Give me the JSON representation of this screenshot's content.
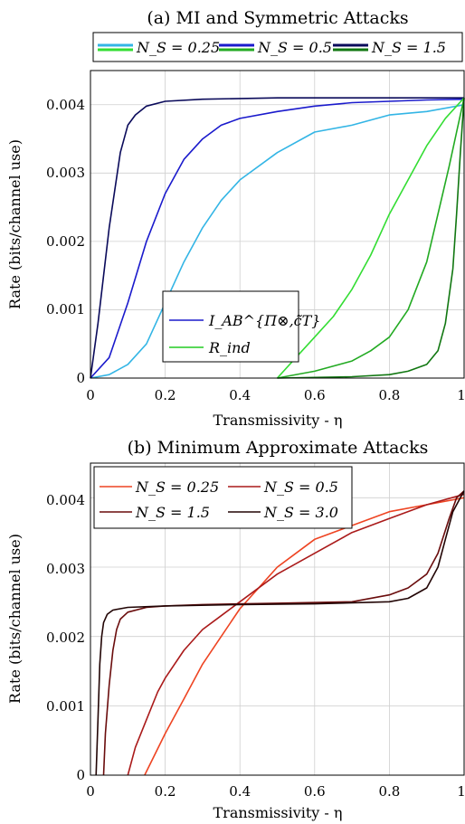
{
  "chart_data": [
    {
      "type": "line",
      "title": "(a) MI and Symmetric Attacks",
      "xlabel": "Transmissivity - η",
      "ylabel": "Rate (bits/channel use)",
      "xlim": [
        0,
        1
      ],
      "ylim": [
        0,
        0.0045
      ],
      "xticks": [
        "0",
        "0.2",
        "0.4",
        "0.6",
        "0.8",
        "1"
      ],
      "yticks": [
        "0",
        "0.001",
        "0.002",
        "0.003",
        "0.004"
      ],
      "grid": true,
      "top_legend": [
        {
          "label": "N_S = 0.25",
          "colors": [
            "#33b5e5",
            "#33dd33"
          ]
        },
        {
          "label": "N_S = 0.5",
          "colors": [
            "#1a1acc",
            "#22aa22"
          ]
        },
        {
          "label": "N_S = 1.5",
          "colors": [
            "#0a0a5a",
            "#117711"
          ]
        }
      ],
      "inner_legend": [
        {
          "label": "I_AB^{Π⊗,c̃T}",
          "color": "#1a1acc"
        },
        {
          "label": "R_ind",
          "color": "#22cc22"
        }
      ],
      "series": [
        {
          "key": "mi_0.25",
          "color": "#33b5e5",
          "x": [
            0,
            0.05,
            0.1,
            0.15,
            0.2,
            0.25,
            0.3,
            0.35,
            0.4,
            0.5,
            0.6,
            0.7,
            0.8,
            0.9,
            1.0
          ],
          "y": [
            0,
            5e-05,
            0.0002,
            0.0005,
            0.0011,
            0.0017,
            0.0022,
            0.0026,
            0.0029,
            0.0033,
            0.0036,
            0.0037,
            0.00385,
            0.0039,
            0.004
          ]
        },
        {
          "key": "mi_0.5",
          "color": "#1a1acc",
          "x": [
            0,
            0.05,
            0.1,
            0.15,
            0.2,
            0.25,
            0.3,
            0.35,
            0.4,
            0.5,
            0.6,
            0.7,
            0.8,
            0.9,
            1.0
          ],
          "y": [
            0,
            0.0003,
            0.0011,
            0.002,
            0.0027,
            0.0032,
            0.0035,
            0.0037,
            0.0038,
            0.0039,
            0.00398,
            0.00403,
            0.00405,
            0.00407,
            0.00408
          ]
        },
        {
          "key": "mi_1.5",
          "color": "#0a0a5a",
          "x": [
            0,
            0.02,
            0.05,
            0.08,
            0.1,
            0.12,
            0.15,
            0.2,
            0.3,
            0.5,
            0.7,
            1.0
          ],
          "y": [
            0,
            0.0008,
            0.0022,
            0.0033,
            0.0037,
            0.00385,
            0.00398,
            0.00405,
            0.00408,
            0.0041,
            0.0041,
            0.0041
          ]
        },
        {
          "key": "rind_0.25",
          "color": "#33dd33",
          "x": [
            0.5,
            0.55,
            0.6,
            0.65,
            0.7,
            0.75,
            0.8,
            0.85,
            0.9,
            0.95,
            1.0
          ],
          "y": [
            0,
            0.0003,
            0.0006,
            0.0009,
            0.0013,
            0.0018,
            0.0024,
            0.0029,
            0.0034,
            0.0038,
            0.0041
          ]
        },
        {
          "key": "rind_0.5",
          "color": "#22aa22",
          "x": [
            0.5,
            0.6,
            0.7,
            0.75,
            0.8,
            0.85,
            0.9,
            0.93,
            0.96,
            0.98,
            1.0
          ],
          "y": [
            0,
            0.0001,
            0.00025,
            0.0004,
            0.0006,
            0.001,
            0.0017,
            0.0024,
            0.0031,
            0.0036,
            0.0041
          ]
        },
        {
          "key": "rind_1.5",
          "color": "#117711",
          "x": [
            0.5,
            0.7,
            0.8,
            0.85,
            0.9,
            0.93,
            0.95,
            0.97,
            0.98,
            0.99,
            1.0
          ],
          "y": [
            0,
            2e-05,
            5e-05,
            0.0001,
            0.0002,
            0.0004,
            0.0008,
            0.0016,
            0.0024,
            0.0033,
            0.0041
          ]
        }
      ]
    },
    {
      "type": "line",
      "title": "(b) Minimum Approximate Attacks",
      "xlabel": "Transmissivity - η",
      "ylabel": "Rate (bits/channel use)",
      "xlim": [
        0,
        1
      ],
      "ylim": [
        0,
        0.0045
      ],
      "xticks": [
        "0",
        "0.2",
        "0.4",
        "0.6",
        "0.8",
        "1"
      ],
      "yticks": [
        "0",
        "0.001",
        "0.002",
        "0.003",
        "0.004"
      ],
      "grid": true,
      "legend": [
        {
          "label": "N_S = 0.25",
          "color": "#ee4422"
        },
        {
          "label": "N_S = 0.5",
          "color": "#aa1a1a"
        },
        {
          "label": "N_S = 1.5",
          "color": "#6a0c0c"
        },
        {
          "label": "N_S = 3.0",
          "color": "#220505"
        }
      ],
      "series": [
        {
          "key": "ns_0.25",
          "color": "#ee4422",
          "x": [
            0.145,
            0.2,
            0.25,
            0.3,
            0.35,
            0.4,
            0.45,
            0.5,
            0.55,
            0.6,
            0.7,
            0.8,
            0.9,
            1.0
          ],
          "y": [
            0,
            0.0006,
            0.0011,
            0.0016,
            0.002,
            0.0024,
            0.0027,
            0.003,
            0.0032,
            0.0034,
            0.0036,
            0.0038,
            0.0039,
            0.004
          ]
        },
        {
          "key": "ns_0.5",
          "color": "#aa1a1a",
          "x": [
            0.1,
            0.12,
            0.15,
            0.18,
            0.2,
            0.25,
            0.3,
            0.35,
            0.4,
            0.5,
            0.6,
            0.7,
            0.8,
            0.9,
            1.0
          ],
          "y": [
            0,
            0.0004,
            0.0008,
            0.0012,
            0.0014,
            0.0018,
            0.0021,
            0.0023,
            0.0025,
            0.0029,
            0.0032,
            0.0035,
            0.0037,
            0.0039,
            0.00405
          ]
        },
        {
          "key": "ns_1.5",
          "color": "#6a0c0c",
          "x": [
            0.035,
            0.04,
            0.05,
            0.06,
            0.07,
            0.08,
            0.1,
            0.15,
            0.2,
            0.3,
            0.5,
            0.7,
            0.8,
            0.85,
            0.9,
            0.93,
            0.96,
            0.98,
            1.0
          ],
          "y": [
            0,
            0.0006,
            0.0013,
            0.0018,
            0.0021,
            0.00225,
            0.00235,
            0.00242,
            0.00244,
            0.00246,
            0.00248,
            0.0025,
            0.0026,
            0.0027,
            0.0029,
            0.0032,
            0.0037,
            0.004,
            0.0041
          ]
        },
        {
          "key": "ns_3.0",
          "color": "#220505",
          "x": [
            0.015,
            0.02,
            0.025,
            0.03,
            0.035,
            0.045,
            0.06,
            0.1,
            0.2,
            0.4,
            0.6,
            0.8,
            0.85,
            0.9,
            0.93,
            0.95,
            0.97,
            0.99,
            1.0
          ],
          "y": [
            0,
            0.0008,
            0.0016,
            0.002,
            0.0022,
            0.00232,
            0.00238,
            0.00242,
            0.00244,
            0.00246,
            0.00247,
            0.0025,
            0.00255,
            0.0027,
            0.003,
            0.0034,
            0.0038,
            0.004,
            0.0041
          ]
        }
      ]
    }
  ]
}
